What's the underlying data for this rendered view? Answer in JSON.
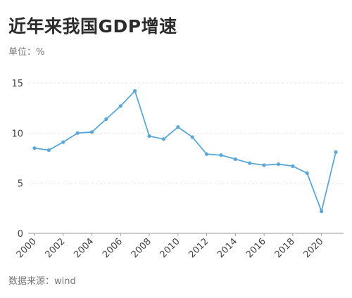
{
  "title": "近年来我国GDP增速",
  "unit_label": "单位：%",
  "source_label": "数据来源：wind",
  "colors": {
    "line": "#5ba7d8",
    "grid": "#e6e6e6",
    "axis": "#9a9a9a"
  },
  "chart_data": {
    "type": "line",
    "title": "近年来我国GDP增速",
    "xlabel": "",
    "ylabel": "",
    "x": [
      2000,
      2001,
      2002,
      2003,
      2004,
      2005,
      2006,
      2007,
      2008,
      2009,
      2010,
      2011,
      2012,
      2013,
      2014,
      2015,
      2016,
      2017,
      2018,
      2019,
      2020,
      2021
    ],
    "series": [
      {
        "values": [
          8.5,
          8.3,
          9.1,
          10.0,
          10.1,
          11.4,
          12.7,
          14.2,
          9.7,
          9.4,
          10.6,
          9.6,
          7.9,
          7.8,
          7.4,
          7.0,
          6.8,
          6.9,
          6.7,
          6.0,
          2.2,
          8.1
        ]
      }
    ],
    "xticks": [
      "2000",
      "2002",
      "2004",
      "2006",
      "2008",
      "2010",
      "2012",
      "2014",
      "2016",
      "2018",
      "2020"
    ],
    "yticks": [
      "0",
      "5",
      "10",
      "15"
    ],
    "xlim": [
      2000,
      2021
    ],
    "ylim": [
      0,
      15
    ],
    "grid": true
  }
}
